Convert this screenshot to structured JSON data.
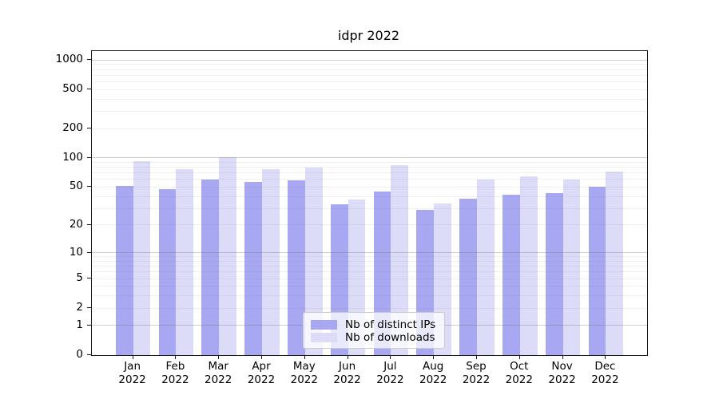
{
  "chart_data": {
    "type": "bar",
    "title": "idpr 2022",
    "categories": [
      "Jan",
      "Feb",
      "Mar",
      "Apr",
      "May",
      "Jun",
      "Jul",
      "Aug",
      "Sep",
      "Oct",
      "Nov",
      "Dec"
    ],
    "category_year": "2022",
    "series": [
      {
        "name": "Nb of distinct IPs",
        "color": "#a8a8f2",
        "values": [
          51,
          48,
          60,
          57,
          59,
          33,
          45,
          29,
          38,
          42,
          43,
          50
        ]
      },
      {
        "name": "Nb of downloads",
        "color": "#dcdcf9",
        "values": [
          93,
          76,
          101,
          77,
          80,
          37,
          84,
          34,
          60,
          64,
          60,
          72
        ]
      }
    ],
    "yscale": "log10(1+v)",
    "y_ticks": [
      0,
      1,
      2,
      5,
      10,
      20,
      50,
      100,
      200,
      500,
      1000
    ],
    "major_gridlines": [
      1,
      10,
      100,
      1000
    ],
    "ylim": [
      0,
      1230
    ],
    "grid": true,
    "legend_position": "lower center"
  }
}
